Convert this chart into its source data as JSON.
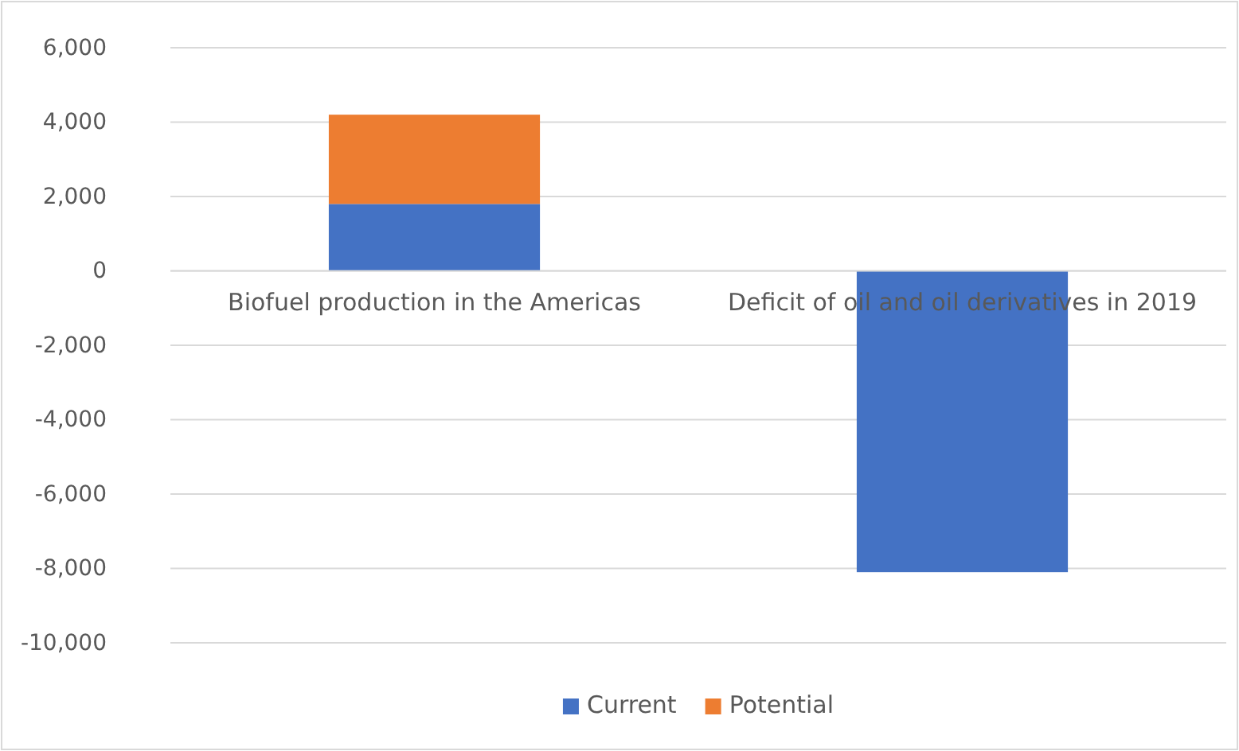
{
  "chart_data": {
    "type": "bar",
    "stacked": true,
    "categories": [
      "Biofuel production in the Americas",
      "Deficit of oil and oil derivatives in 2019"
    ],
    "series": [
      {
        "name": "Current",
        "color": "#4472c4",
        "values": [
          1800,
          -8100
        ]
      },
      {
        "name": "Potential",
        "color": "#ed7d31",
        "values": [
          2400,
          null
        ]
      }
    ],
    "ylim": [
      -10000,
      6000
    ],
    "yticks": [
      {
        "value": -10000,
        "label": "-10,000"
      },
      {
        "value": -8000,
        "label": "-8,000"
      },
      {
        "value": -6000,
        "label": "-6,000"
      },
      {
        "value": -4000,
        "label": "-4,000"
      },
      {
        "value": -2000,
        "label": "-2,000"
      },
      0,
      {
        "value": 2000,
        "label": "2,000"
      },
      {
        "value": 4000,
        "label": "4,000"
      },
      {
        "value": 6000,
        "label": "6,000"
      }
    ],
    "grid": "y",
    "legend": "bottom"
  }
}
